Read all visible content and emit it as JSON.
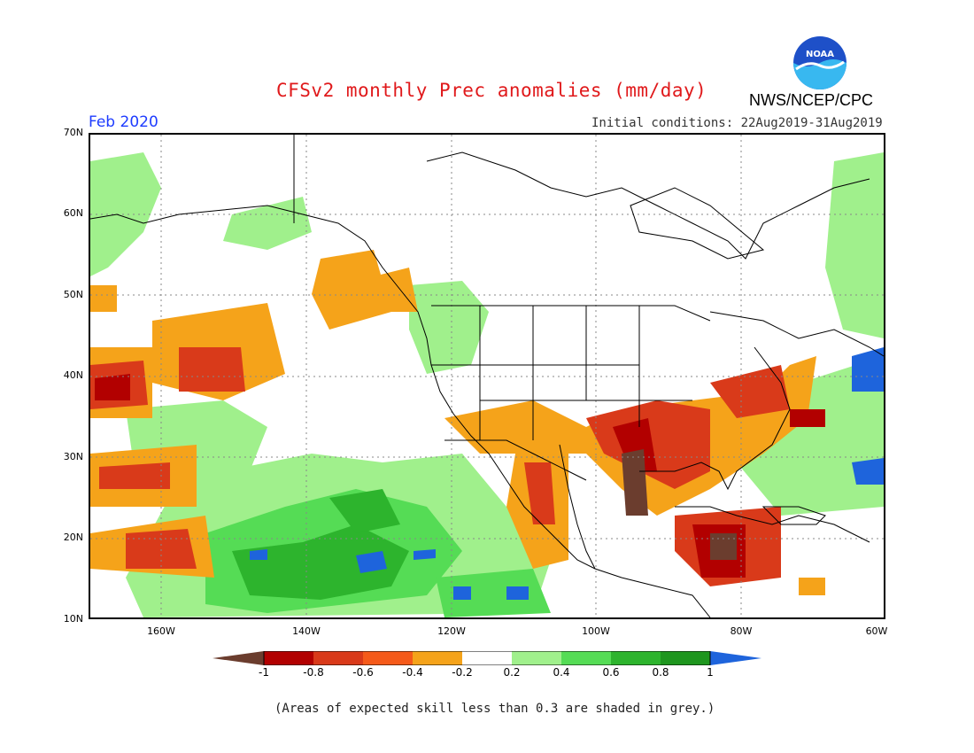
{
  "header": {
    "title": "CFSv2 monthly Prec anomalies (mm/day)",
    "agency": "NWS/NCEP/CPC",
    "logo_text": "NOAA",
    "month": "Feb 2020",
    "initial_conditions": "Initial conditions: 22Aug2019-31Aug2019"
  },
  "axes": {
    "lat_labels": [
      "70N",
      "60N",
      "50N",
      "40N",
      "30N",
      "20N",
      "10N"
    ],
    "lon_labels": [
      "160W",
      "140W",
      "120W",
      "100W",
      "80W",
      "60W"
    ],
    "lat_range": [
      10,
      70
    ],
    "lon_range": [
      -170,
      -60
    ]
  },
  "legend": {
    "ticks": [
      "-1",
      "-0.8",
      "-0.6",
      "-0.4",
      "-0.2",
      "0.2",
      "0.4",
      "0.6",
      "0.8",
      "1"
    ],
    "colors": [
      "#6b3d2e",
      "#b20000",
      "#d93a1a",
      "#f55a1a",
      "#f5a31a",
      "#ffffff",
      "#a0f08c",
      "#55dc55",
      "#2db42d",
      "#1e961e",
      "#1e64dc"
    ],
    "bins": [
      "< -1",
      "-1 to -0.8",
      "-0.8 to -0.6",
      "-0.6 to -0.4",
      "-0.4 to -0.2",
      "-0.2 to 0.2",
      "0.2 to 0.4",
      "0.4 to 0.6",
      "0.6 to 0.8",
      "0.8 to 1",
      "> 1"
    ]
  },
  "footnote": "(Areas of expected skill less than 0.3 are shaded in grey.)"
}
